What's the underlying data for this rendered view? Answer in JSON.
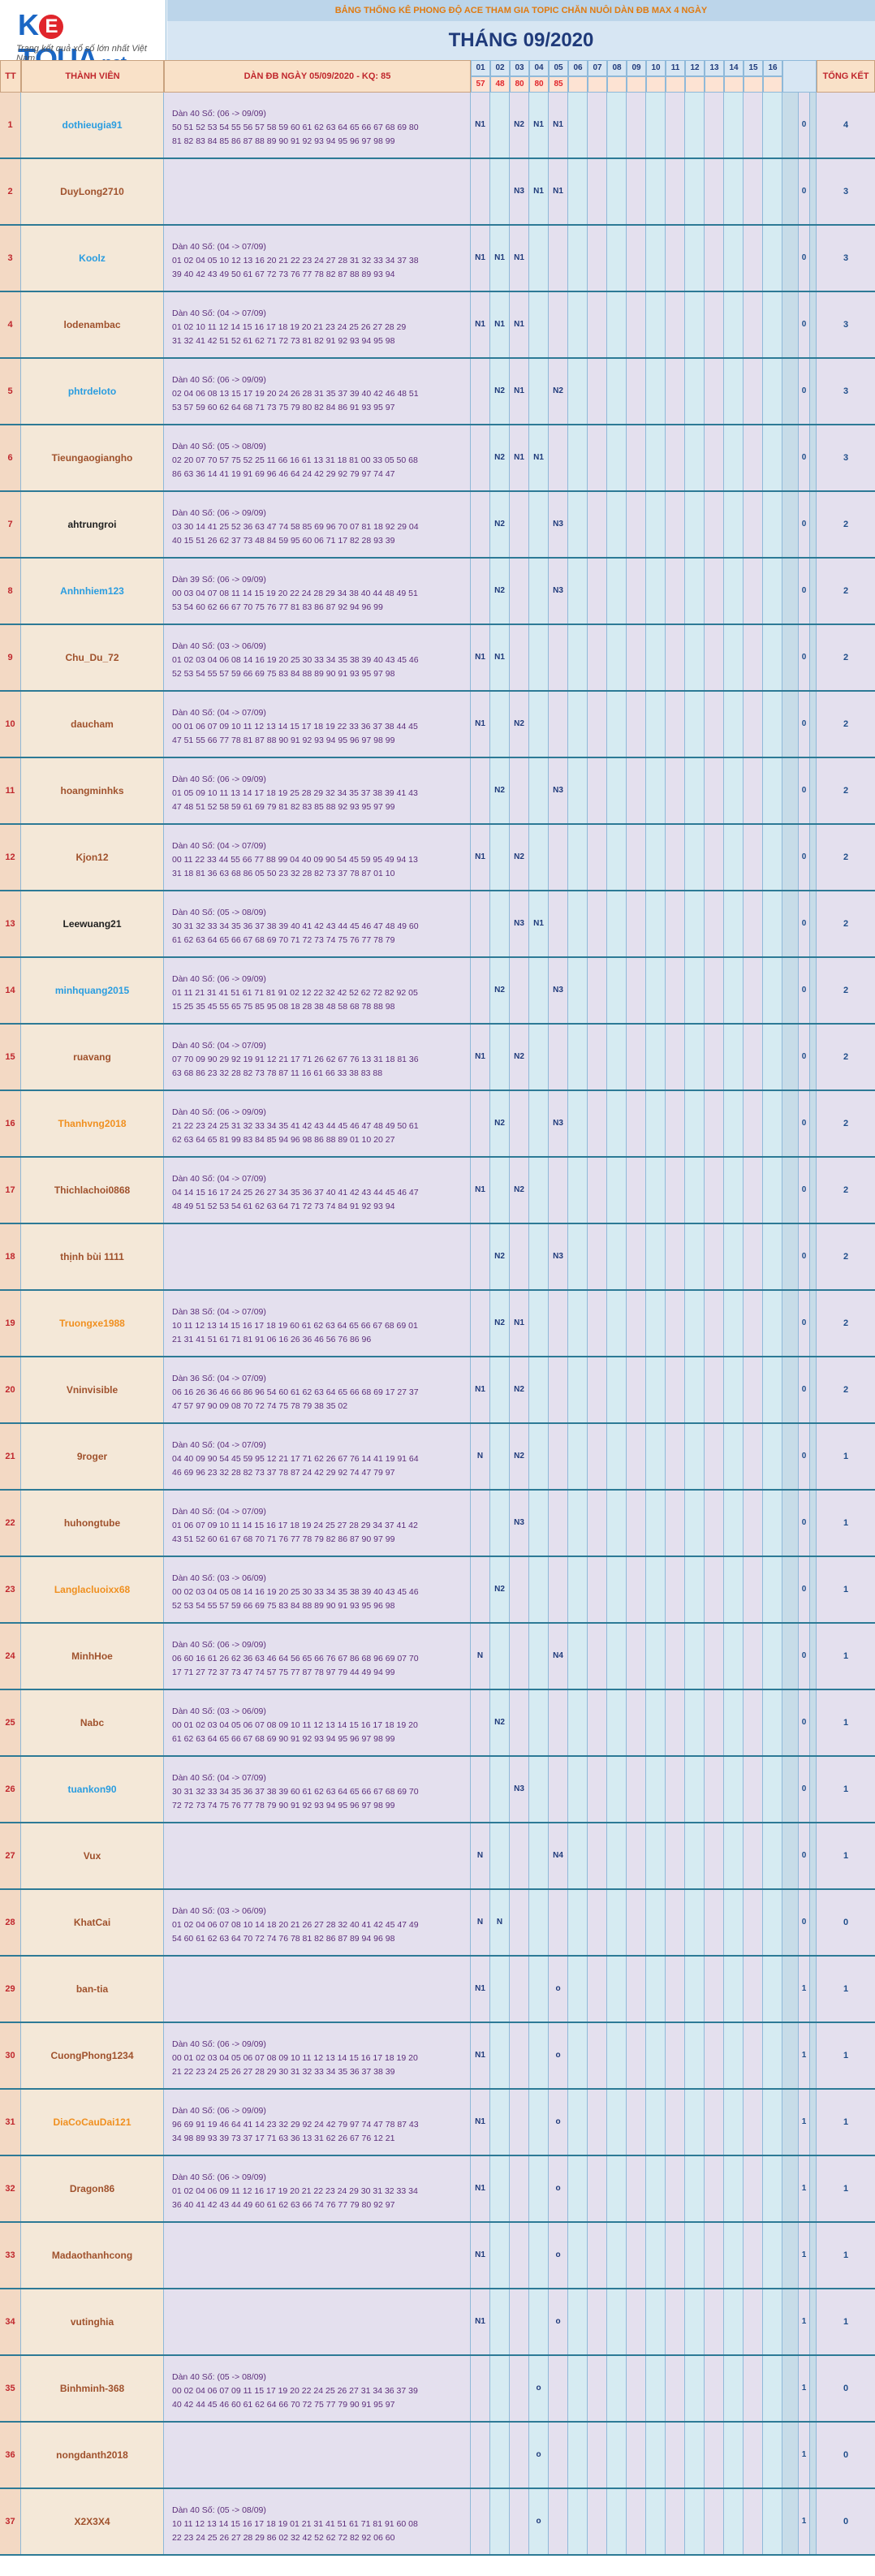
{
  "logo": {
    "k": "K",
    "e": "E",
    "t": "T",
    "q": "QUA",
    "net": ".net",
    "tagline": "Trang kết quả xổ số lớn nhất Việt Nam"
  },
  "header": {
    "banner": "BẢNG THỐNG KÊ PHONG ĐỘ ACE THAM GIA TOPIC CHĂN NUÔI DÀN ĐB MAX 4 NGÀY",
    "month": "THÁNG 09/2020",
    "col_tt": "TT",
    "col_member": "THÀNH VIÊN",
    "col_dan": "DÀN ĐB NGÀY 05/09/2020 - KQ: 85",
    "col_total": "TỔNG KẾT"
  },
  "days": [
    "01",
    "02",
    "03",
    "04",
    "05",
    "06",
    "07",
    "08",
    "09",
    "10",
    "11",
    "12",
    "13",
    "14",
    "15",
    "16"
  ],
  "results": [
    "57",
    "48",
    "80",
    "80",
    "85",
    "",
    "",
    "",
    "",
    "",
    "",
    "",
    "",
    "",
    "",
    ""
  ],
  "rows": [
    {
      "tt": "1",
      "name": "dothieugia91",
      "color": "blue",
      "l1": "Dàn 40 Số: (06 -> 09/09)",
      "l2": "50 51 52 53 54 55 56 57 58 59 60 61 62 63 64 65 66 67 68 69 80",
      "l3": "81 82 83 84 85 86 87 88 89 90 91 92 93 94 95 96 97 98 99",
      "d": [
        "N1",
        "",
        "N2",
        "N1",
        "N1"
      ],
      "n0": "0",
      "tk": "4"
    },
    {
      "tt": "2",
      "name": "DuyLong2710",
      "color": "brown",
      "l1": "",
      "l2": "",
      "l3": "",
      "d": [
        "",
        "",
        "N3",
        "N1",
        "N1"
      ],
      "n0": "0",
      "tk": "3"
    },
    {
      "tt": "3",
      "name": "Koolz",
      "color": "blue",
      "l1": "Dàn 40 Số: (04 -> 07/09)",
      "l2": "01 02 04 05 10 12 13 16 20 21 22 23 24 27 28 31 32 33 34 37 38",
      "l3": "39 40 42 43 49 50 61 67 72 73 76 77 78 82 87 88 89 93 94",
      "d": [
        "N1",
        "N1",
        "N1",
        "",
        ""
      ],
      "n0": "0",
      "tk": "3"
    },
    {
      "tt": "4",
      "name": "lodenambac",
      "color": "brown",
      "l1": "Dàn 40 Số: (04 -> 07/09)",
      "l2": "01 02 10 11 12 14 15 16 17 18 19 20 21 23 24 25 26 27 28 29",
      "l3": "31 32 41 42 51 52 61 62 71 72 73 81 82 91 92 93 94 95 98",
      "d": [
        "N1",
        "N1",
        "N1",
        "",
        ""
      ],
      "n0": "0",
      "tk": "3"
    },
    {
      "tt": "5",
      "name": "phtrdeloto",
      "color": "blue",
      "l1": "Dàn 40 Số: (06 -> 09/09)",
      "l2": "02 04 06 08 13 15 17 19 20 24 26 28 31 35 37 39 40 42 46 48 51",
      "l3": "53 57 59 60 62 64 68 71 73 75 79 80 82 84 86 91 93 95 97",
      "d": [
        "",
        "N2",
        "N1",
        "",
        "N2"
      ],
      "n0": "0",
      "tk": "3"
    },
    {
      "tt": "6",
      "name": "Tieungaogiangho",
      "color": "brown",
      "l1": "Dàn 40 Số: (05 -> 08/09)",
      "l2": "02 20 07 70 57 75 52 25 11 66 16 61 13 31 18 81 00 33 05 50 68",
      "l3": "86 63 36 14 41 19 91 69 96 46 64 24 42 29 92 79 97 74 47",
      "d": [
        "",
        "N2",
        "N1",
        "N1",
        ""
      ],
      "n0": "0",
      "tk": "3"
    },
    {
      "tt": "7",
      "name": "ahtrungroi",
      "color": "black",
      "l1": "Dàn 40 Số: (06 -> 09/09)",
      "l2": "03 30 14 41 25 52 36 63 47 74 58 85 69 96 70 07 81 18 92 29 04",
      "l3": "40 15 51 26 62 37 73 48 84 59 95 60 06 71 17 82 28 93 39",
      "d": [
        "",
        "N2",
        "",
        "",
        "N3"
      ],
      "n0": "0",
      "tk": "2"
    },
    {
      "tt": "8",
      "name": "Anhnhiem123",
      "color": "blue",
      "l1": "Dàn 39 Số: (06 -> 09/09)",
      "l2": "00 03 04 07 08 11 14 15 19 20 22 24 28 29 34 38 40 44 48 49 51",
      "l3": "53 54 60 62 66 67 70 75 76 77 81 83 86 87 92 94 96 99",
      "d": [
        "",
        "N2",
        "",
        "",
        "N3"
      ],
      "n0": "0",
      "tk": "2"
    },
    {
      "tt": "9",
      "name": "Chu_Du_72",
      "color": "brown",
      "l1": "Dàn 40 Số: (03 -> 06/09)",
      "l2": "01 02 03 04 06 08 14 16 19 20 25 30 33 34 35 38 39 40 43 45 46",
      "l3": "52 53 54 55 57 59 66 69 75 83 84 88 89 90 91 93 95 97 98",
      "d": [
        "N1",
        "N1",
        "",
        "",
        ""
      ],
      "n0": "0",
      "tk": "2"
    },
    {
      "tt": "10",
      "name": "daucham",
      "color": "brown",
      "l1": "Dàn 40 Số: (04 -> 07/09)",
      "l2": "00 01 06 07 09 10 11 12 13 14 15 17 18 19 22 33 36 37 38 44 45",
      "l3": "47 51 55 66 77 78 81 87 88 90 91 92 93 94 95 96 97 98 99",
      "d": [
        "N1",
        "",
        "N2",
        "",
        ""
      ],
      "n0": "0",
      "tk": "2"
    },
    {
      "tt": "11",
      "name": "hoangminhks",
      "color": "brown",
      "l1": "Dàn 40 Số: (06 -> 09/09)",
      "l2": "01 05 09 10 11 13 14 17 18 19 25 28 29 32 34 35 37 38 39 41 43",
      "l3": "47 48 51 52 58 59 61 69 79 81 82 83 85 88 92 93 95 97 99",
      "d": [
        "",
        "N2",
        "",
        "",
        "N3"
      ],
      "n0": "0",
      "tk": "2"
    },
    {
      "tt": "12",
      "name": "Kjon12",
      "color": "brown",
      "l1": "Dàn 40 Số: (04 -> 07/09)",
      "l2": "00 11 22 33 44 55 66 77 88 99 04 40 09 90 54 45 59 95 49 94 13",
      "l3": "31 18 81 36 63 68 86 05 50 23 32 28 82 73 37 78 87 01 10",
      "d": [
        "N1",
        "",
        "N2",
        "",
        ""
      ],
      "n0": "0",
      "tk": "2"
    },
    {
      "tt": "13",
      "name": "Leewuang21",
      "color": "black",
      "l1": "Dàn 40 Số: (05 -> 08/09)",
      "l2": "30 31 32 33 34 35 36 37 38 39 40 41 42 43 44 45 46 47 48 49 60",
      "l3": "61 62 63 64 65 66 67 68 69 70 71 72 73 74 75 76 77 78 79",
      "d": [
        "",
        "",
        "N3",
        "N1",
        ""
      ],
      "n0": "0",
      "tk": "2"
    },
    {
      "tt": "14",
      "name": "minhquang2015",
      "color": "blue",
      "l1": "Dàn 40 Số: (06 -> 09/09)",
      "l2": "01 11 21 31 41 51 61 71 81 91 02 12 22 32 42 52 62 72 82 92 05",
      "l3": "15 25 35 45 55 65 75 85 95 08 18 28 38 48 58 68 78 88 98",
      "d": [
        "",
        "N2",
        "",
        "",
        "N3"
      ],
      "n0": "0",
      "tk": "2"
    },
    {
      "tt": "15",
      "name": "ruavang",
      "color": "brown",
      "l1": "Dàn 40 Số: (04 -> 07/09)",
      "l2": "07 70 09 90 29 92 19 91 12 21 17 71 26 62 67 76 13 31 18 81 36",
      "l3": "63 68 86 23 32 28 82 73 78 87 11 16 61 66 33 38 83 88",
      "d": [
        "N1",
        "",
        "N2",
        "",
        ""
      ],
      "n0": "0",
      "tk": "2"
    },
    {
      "tt": "16",
      "name": "Thanhvng2018",
      "color": "orange",
      "l1": "Dàn 40 Số: (06 -> 09/09)",
      "l2": "21 22 23 24 25 31 32 33 34 35 41 42 43 44 45 46 47 48 49 50 61",
      "l3": "62 63 64 65 81 99 83 84 85 94 96 98 86 88 89 01 10 20 27",
      "d": [
        "",
        "N2",
        "",
        "",
        "N3"
      ],
      "n0": "0",
      "tk": "2"
    },
    {
      "tt": "17",
      "name": "Thichlachoi0868",
      "color": "brown",
      "l1": "Dàn 40 Số: (04 -> 07/09)",
      "l2": "04 14 15 16 17 24 25 26 27 34 35 36 37 40 41 42 43 44 45 46 47",
      "l3": "48 49 51 52 53 54 61 62 63 64 71 72 73 74 84 91 92 93 94",
      "d": [
        "N1",
        "",
        "N2",
        "",
        ""
      ],
      "n0": "0",
      "tk": "2"
    },
    {
      "tt": "18",
      "name": "thịnh bùi 1111",
      "color": "brown",
      "l1": "",
      "l2": "",
      "l3": "",
      "d": [
        "",
        "N2",
        "",
        "",
        "N3"
      ],
      "n0": "0",
      "tk": "2"
    },
    {
      "tt": "19",
      "name": "Truongxe1988",
      "color": "orange",
      "l1": "Dàn 38 Số: (04 -> 07/09)",
      "l2": "10 11 12 13 14 15 16 17 18 19 60 61 62 63 64 65 66 67 68 69 01",
      "l3": "21 31 41 51 61 71 81 91 06 16 26 36 46 56 76 86 96",
      "d": [
        "",
        "N2",
        "N1",
        "",
        ""
      ],
      "n0": "0",
      "tk": "2"
    },
    {
      "tt": "20",
      "name": "Vninvisible",
      "color": "brown",
      "l1": "Dàn 36 Số: (04 -> 07/09)",
      "l2": "06 16 26 36 46 66 86 96 54 60 61 62 63 64 65 66 68 69 17 27 37",
      "l3": "47 57 97 90 09 08 70 72 74 75 78 79 38 35 02",
      "d": [
        "N1",
        "",
        "N2",
        "",
        ""
      ],
      "n0": "0",
      "tk": "2"
    },
    {
      "tt": "21",
      "name": "9roger",
      "color": "brown",
      "l1": "Dàn 40 Số: (04 -> 07/09)",
      "l2": "04 40 09 90 54 45 59 95 12 21 17 71 62 26 67 76 14 41 19 91 64",
      "l3": "46 69 96 23 32 28 82 73 37 78 87 24 42 29 92 74 47 79 97",
      "d": [
        "N",
        "",
        "N2",
        "",
        ""
      ],
      "n0": "0",
      "tk": "1"
    },
    {
      "tt": "22",
      "name": "huhongtube",
      "color": "brown",
      "l1": "Dàn 40 Số: (04 -> 07/09)",
      "l2": "01 06 07 09 10 11 14 15 16 17 18 19 24 25 27 28 29 34 37 41 42",
      "l3": "43 51 52 60 61 67 68 70 71 76 77 78 79 82 86 87 90 97 99",
      "d": [
        "",
        "",
        "N3",
        "",
        ""
      ],
      "n0": "0",
      "tk": "1"
    },
    {
      "tt": "23",
      "name": "Langlacluoixx68",
      "color": "orange",
      "l1": "Dàn 40 Số: (03 -> 06/09)",
      "l2": "00 02 03 04 05 08 14 16 19 20 25 30 33 34 35 38 39 40 43 45 46",
      "l3": "52 53 54 55 57 59 66 69 75 83 84 88 89 90 91 93 95 96 98",
      "d": [
        "",
        "N2",
        "",
        "",
        ""
      ],
      "n0": "0",
      "tk": "1"
    },
    {
      "tt": "24",
      "name": "MinhHoe",
      "color": "brown",
      "l1": "Dàn 40 Số: (06 -> 09/09)",
      "l2": "06 60 16 61 26 62 36 63 46 64 56 65 66 76 67 86 68 96 69 07 70",
      "l3": "17 71 27 72 37 73 47 74 57 75 77 87 78 97 79 44 49 94 99",
      "d": [
        "N",
        "",
        "",
        "",
        "N4"
      ],
      "n0": "0",
      "tk": "1"
    },
    {
      "tt": "25",
      "name": "Nabc",
      "color": "brown",
      "l1": "Dàn 40 Số: (03 -> 06/09)",
      "l2": "00 01 02 03 04 05 06 07 08 09 10 11 12 13 14 15 16 17 18 19 20",
      "l3": "61 62 63 64 65 66 67 68 69 90 91 92 93 94 95 96 97 98 99",
      "d": [
        "",
        "N2",
        "",
        "",
        ""
      ],
      "n0": "0",
      "tk": "1"
    },
    {
      "tt": "26",
      "name": "tuankon90",
      "color": "blue",
      "l1": "Dàn 40 Số: (04 -> 07/09)",
      "l2": "30 31 32 33 34 35 36 37 38 39 60 61 62 63 64 65 66 67 68 69 70",
      "l3": "72 72 73 74 75 76 77 78 79 90 91 92 93 94 95 96 97 98 99",
      "d": [
        "",
        "",
        "N3",
        "",
        ""
      ],
      "n0": "0",
      "tk": "1"
    },
    {
      "tt": "27",
      "name": "Vux",
      "color": "brown",
      "l1": "",
      "l2": "",
      "l3": "",
      "d": [
        "N",
        "",
        "",
        "",
        "N4"
      ],
      "n0": "0",
      "tk": "1"
    },
    {
      "tt": "28",
      "name": "KhatCai",
      "color": "brown",
      "l1": "Dàn 40 Số: (03 -> 06/09)",
      "l2": "01 02 04 06 07 08 10 14 18 20 21 26 27 28 32 40 41 42 45 47 49",
      "l3": "54 60 61 62 63 64 70 72 74 76 78 81 82 86 87 89 94 96 98",
      "d": [
        "N",
        "N",
        "",
        "",
        ""
      ],
      "n0": "0",
      "tk": "0"
    },
    {
      "tt": "29",
      "name": "ban-tia",
      "color": "brown",
      "l1": "",
      "l2": "",
      "l3": "",
      "d": [
        "N1",
        "",
        "",
        "",
        "o"
      ],
      "n0": "1",
      "tk": "1"
    },
    {
      "tt": "30",
      "name": "CuongPhong1234",
      "color": "brown",
      "l1": "Dàn 40 Số: (06 -> 09/09)",
      "l2": "00 01 02 03 04 05 06 07 08 09 10 11 12 13 14 15 16 17 18 19 20",
      "l3": "21 22 23 24 25 26 27 28 29 30 31 32 33 34 35 36 37 38 39",
      "d": [
        "N1",
        "",
        "",
        "",
        "o"
      ],
      "n0": "1",
      "tk": "1"
    },
    {
      "tt": "31",
      "name": "DiaCoCauDai121",
      "color": "orange",
      "l1": "Dàn 40 Số: (06 -> 09/09)",
      "l2": "96 69 91 19 46 64 41 14 23 32 29 92 24 42 79 97 74 47 78 87 43",
      "l3": "34 98 89 93 39 73 37 17 71 63 36 13 31 62 26 67 76 12 21",
      "d": [
        "N1",
        "",
        "",
        "",
        "o"
      ],
      "n0": "1",
      "tk": "1"
    },
    {
      "tt": "32",
      "name": "Dragon86",
      "color": "brown",
      "l1": "Dàn 40 Số: (06 -> 09/09)",
      "l2": "01 02 04 06 09 11 12 16 17 19 20 21 22 23 24 29 30 31 32 33 34",
      "l3": "36 40 41 42 43 44 49 60 61 62 63 66 74 76 77 79 80 92 97",
      "d": [
        "N1",
        "",
        "",
        "",
        "o"
      ],
      "n0": "1",
      "tk": "1"
    },
    {
      "tt": "33",
      "name": "Madaothanhcong",
      "color": "brown",
      "l1": "",
      "l2": "",
      "l3": "",
      "d": [
        "N1",
        "",
        "",
        "",
        "o"
      ],
      "n0": "1",
      "tk": "1"
    },
    {
      "tt": "34",
      "name": "vutinghia",
      "color": "brown",
      "l1": "",
      "l2": "",
      "l3": "",
      "d": [
        "N1",
        "",
        "",
        "",
        "o"
      ],
      "n0": "1",
      "tk": "1"
    },
    {
      "tt": "35",
      "name": "Binhminh-368",
      "color": "brown",
      "l1": "Dàn 40 Số: (05 -> 08/09)",
      "l2": "00 02 04 06 07 09 11 15 17 19 20 22 24 25 26 27 31 34 36 37 39",
      "l3": "40 42 44 45 46 60 61 62 64 66 70 72 75 77 79 90 91 95 97",
      "d": [
        "",
        "",
        "",
        "o",
        ""
      ],
      "n0": "1",
      "tk": "0"
    },
    {
      "tt": "36",
      "name": "nongdanth2018",
      "color": "brown",
      "l1": "",
      "l2": "",
      "l3": "",
      "d": [
        "",
        "",
        "",
        "o",
        ""
      ],
      "n0": "1",
      "tk": "0"
    },
    {
      "tt": "37",
      "name": "X2X3X4",
      "color": "brown",
      "l1": "Dàn 40 Số: (05 -> 08/09)",
      "l2": "10 11 12 13 14 15 16 17 18 19 01 21 31 41 51 61 71 81 91 60 08",
      "l3": "22 23 24 25 26 27 28 29 86 02 32 42 52 62 72 82 92 06 60",
      "d": [
        "",
        "",
        "",
        "o",
        ""
      ],
      "n0": "1",
      "tk": "0"
    }
  ]
}
